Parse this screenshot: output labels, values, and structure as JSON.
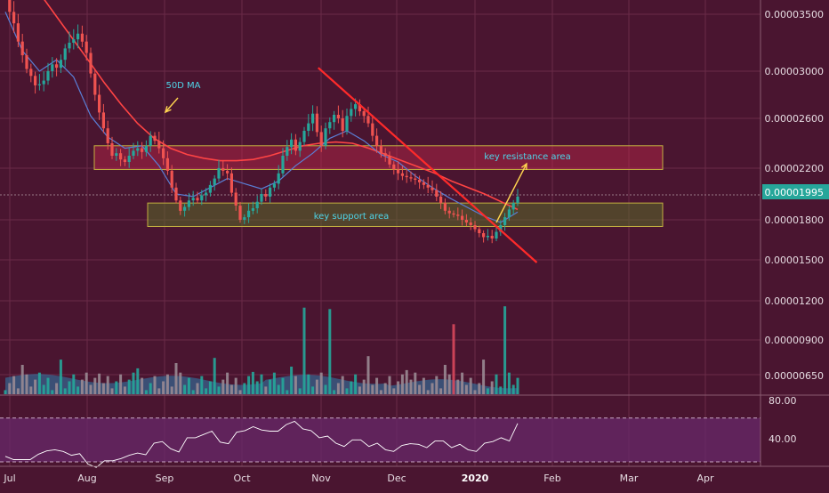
{
  "theme": {
    "background": "#4a1530",
    "grid": "#6a2a48",
    "axis_text": "#e6dce2",
    "candle_up": "#26a69a",
    "candle_down": "#ef5350",
    "ma_slow": "#ff4444",
    "ma_fast": "#5a7fd6",
    "trendline": "#ff2a2a",
    "arrow": "#ffd54f",
    "annotation_text": "#4fd4e8",
    "support_fill": "#5a6a2a",
    "resistance_fill": "#c2284a",
    "rsi_band": "#6a2a6e",
    "rsi_line": "#ffffff",
    "price_badge": "#26a69a"
  },
  "price_axis": {
    "labels": [
      "0.00003500",
      "0.00003000",
      "0.00002600",
      "0.00002200",
      "0.00001800",
      "0.00001500",
      "0.00001200",
      "0.00000900",
      "0.00000650"
    ]
  },
  "rsi_axis": {
    "labels": [
      "80.00",
      "40.00"
    ]
  },
  "time_axis": {
    "labels": [
      "Jul",
      "Aug",
      "Sep",
      "Oct",
      "Nov",
      "Dec",
      "2020",
      "Feb",
      "Mar",
      "Apr"
    ]
  },
  "current_price": "0.00001995",
  "annotations": {
    "ma_label": "50D MA",
    "resistance_label": "key resistance area",
    "support_label": "key support area"
  },
  "chart_data": {
    "type": "candlestick",
    "series_kind": "price with volume and RSI",
    "x_start": "2019-07-01",
    "price_axis_ticks": [
      3.5e-05,
      3e-05,
      2.6e-05,
      2.2e-05,
      1.8e-05,
      1.5e-05,
      1.2e-05,
      9e-06,
      6.5e-06
    ],
    "current_price": 1.995e-05,
    "zones": {
      "resistance": {
        "low": 2.19e-05,
        "high": 2.38e-05
      },
      "support": {
        "low": 1.75e-05,
        "high": 1.93e-05
      }
    },
    "trendline": {
      "start": [
        "2019-10-29",
        3.03e-05
      ],
      "end": [
        "2020-01-22",
        1.48e-05
      ]
    },
    "closes": [
      3.7e-05,
      3.52e-05,
      3.42e-05,
      3.26e-05,
      3.14e-05,
      3.02e-05,
      2.96e-05,
      2.88e-05,
      2.89e-05,
      2.92e-05,
      3e-05,
      3.06e-05,
      3.03e-05,
      3.1e-05,
      3.2e-05,
      3.25e-05,
      3.28e-05,
      3.33e-05,
      3.26e-05,
      3.16e-05,
      2.98e-05,
      2.8e-05,
      2.65e-05,
      2.52e-05,
      2.4e-05,
      2.3e-05,
      2.32e-05,
      2.27e-05,
      2.25e-05,
      2.3e-05,
      2.34e-05,
      2.36e-05,
      2.33e-05,
      2.38e-05,
      2.46e-05,
      2.42e-05,
      2.36e-05,
      2.28e-05,
      2.18e-05,
      2.05e-05,
      1.95e-05,
      1.87e-05,
      1.9e-05,
      1.95e-05,
      1.97e-05,
      1.95e-05,
      1.99e-05,
      2.01e-05,
      2.07e-05,
      2.12e-05,
      2.2e-05,
      2.18e-05,
      2.16e-05,
      2.01e-05,
      1.91e-05,
      1.8e-05,
      1.82e-05,
      1.87e-05,
      1.89e-05,
      1.94e-05,
      2e-05,
      1.98e-05,
      2.05e-05,
      2.08e-05,
      2.16e-05,
      2.3e-05,
      2.37e-05,
      2.43e-05,
      2.34e-05,
      2.41e-05,
      2.5e-05,
      2.56e-05,
      2.64e-05,
      2.49e-05,
      2.38e-05,
      2.52e-05,
      2.57e-05,
      2.63e-05,
      2.6e-05,
      2.5e-05,
      2.62e-05,
      2.68e-05,
      2.72e-05,
      2.66e-05,
      2.62e-05,
      2.56e-05,
      2.46e-05,
      2.38e-05,
      2.32e-05,
      2.3e-05,
      2.23e-05,
      2.19e-05,
      2.16e-05,
      2.14e-05,
      2.13e-05,
      2.12e-05,
      2.11e-05,
      2.09e-05,
      2.07e-05,
      2.05e-05,
      2.03e-05,
      1.98e-05,
      1.93e-05,
      1.87e-05,
      1.85e-05,
      1.84e-05,
      1.83e-05,
      1.8e-05,
      1.78e-05,
      1.76e-05,
      1.73e-05,
      1.7e-05,
      1.67e-05,
      1.68e-05,
      1.66e-05,
      1.71e-05,
      1.76e-05,
      1.82e-05,
      1.88e-05,
      1.93e-05,
      1.98e-05
    ],
    "ma_slow": [
      4.1e-05,
      3.9e-05,
      3.7e-05,
      3.5e-05,
      3.3e-05,
      3.1e-05,
      2.9e-05,
      2.72e-05,
      2.56e-05,
      2.44e-05,
      2.36e-05,
      2.31e-05,
      2.28e-05,
      2.26e-05,
      2.26e-05,
      2.27e-05,
      2.3e-05,
      2.34e-05,
      2.38e-05,
      2.4e-05,
      2.41e-05,
      2.4e-05,
      2.36e-05,
      2.31e-05,
      2.26e-05,
      2.21e-05,
      2.16e-05,
      2.1e-05,
      2.05e-05,
      2e-05,
      1.94e-05,
      1.88e-05
    ],
    "ma_fast": [
      3.52e-05,
      3.18e-05,
      3e-05,
      3.1e-05,
      2.95e-05,
      2.62e-05,
      2.45e-05,
      2.36e-05,
      2.38e-05,
      2.22e-05,
      2e-05,
      1.98e-05,
      2.05e-05,
      2.12e-05,
      2.08e-05,
      2.04e-05,
      2.1e-05,
      2.22e-05,
      2.32e-05,
      2.44e-05,
      2.5e-05,
      2.42e-05,
      2.31e-05,
      2.25e-05,
      2.14e-05,
      2.05e-05,
      1.97e-05,
      1.9e-05,
      1.83e-05,
      1.78e-05,
      1.86e-05
    ],
    "volume_spikes": [
      1.2e-05,
      1.19e-05,
      1.08e-05,
      1.21e-05
    ],
    "rsi": [
      35,
      32,
      37,
      41,
      36,
      28,
      31,
      33,
      38,
      47,
      42,
      52,
      55,
      48,
      57,
      62,
      58,
      64,
      60,
      52,
      47,
      50,
      44,
      41,
      45,
      46,
      49,
      43,
      41,
      47,
      52,
      65
    ],
    "rsi_levels": [
      70,
      30
    ]
  }
}
